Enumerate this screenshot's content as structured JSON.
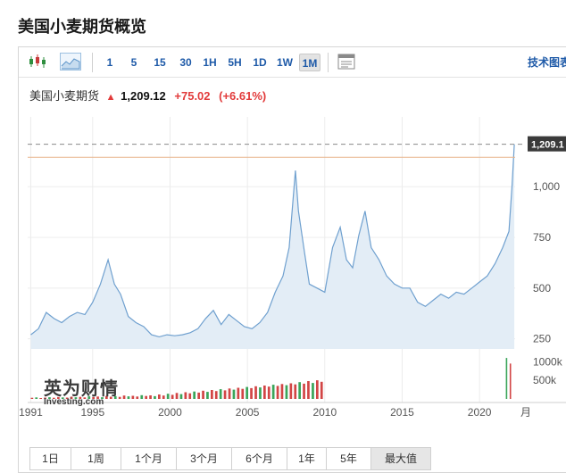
{
  "page": {
    "title": "美国小麦期货概览"
  },
  "toolbar": {
    "candles_icon": "candlestick-chart-icon",
    "area_icon": "area-chart-icon",
    "timeframes": [
      "1",
      "5",
      "15",
      "30",
      "1H",
      "5H",
      "1D",
      "1W",
      "1M"
    ],
    "active_timeframe": "1M",
    "layout_icon": "chart-layout-icon",
    "tech_link": "技术图表"
  },
  "quote": {
    "name": "美国小麦期货",
    "price": "1,209.12",
    "change": "+75.02",
    "change_pct": "(+6.61%)",
    "direction": "up"
  },
  "watermark": {
    "cn": "英为财情",
    "en": "Investing.com"
  },
  "ranges": {
    "items": [
      "1日",
      "1周",
      "1个月",
      "3个月",
      "6个月",
      "1年",
      "5年",
      "最大值"
    ],
    "active": "最大值"
  },
  "colors": {
    "line": "#6fa0cf",
    "fill": "#e3edf6",
    "up": "#e23b3b",
    "vol_up": "#3aa55a",
    "vol_down": "#d24545",
    "ref_line": "#e8b48c"
  },
  "chart_data": {
    "type": "area",
    "ylim": [
      200,
      1300
    ],
    "y_ticks": [
      "250",
      "500",
      "750",
      "1,000"
    ],
    "y_tick_values": [
      250,
      500,
      750,
      1000
    ],
    "x_ticks": [
      "1991",
      "1995",
      "2000",
      "2005",
      "2010",
      "2015",
      "2020"
    ],
    "x_tick_values": [
      1991,
      1995,
      2000,
      2005,
      2010,
      2015,
      2020
    ],
    "x_label_edge": "月",
    "last_price_label": "1,209.1",
    "last_price": 1209.12,
    "volume_ticks": [
      "1000k",
      "500k"
    ],
    "volume_tick_values": [
      1000,
      500
    ],
    "series": [
      {
        "x": [
          1991,
          1991.5,
          1992,
          1992.5,
          1993,
          1993.5,
          1994,
          1994.5,
          1995,
          1995.5,
          1996,
          1996.4,
          1996.8,
          1997.3,
          1997.8,
          1998.3,
          1998.8,
          1999.3,
          1999.8,
          2000.3,
          2000.8,
          2001.3,
          2001.8,
          2002.3,
          2002.8,
          2003.3,
          2003.8,
          2004.3,
          2004.8,
          2005.3,
          2005.8,
          2006.3,
          2006.8,
          2007.3,
          2007.7,
          2008.1,
          2008.3,
          2008.7,
          2009,
          2009.5,
          2010,
          2010.5,
          2011,
          2011.4,
          2011.8,
          2012.2,
          2012.6,
          2013,
          2013.5,
          2014,
          2014.5,
          2015,
          2015.5,
          2016,
          2016.5,
          2017,
          2017.5,
          2018,
          2018.5,
          2019,
          2019.5,
          2020,
          2020.5,
          2021,
          2021.5,
          2021.9,
          2022.1,
          2022.25
        ],
        "values": [
          270,
          300,
          380,
          350,
          330,
          360,
          380,
          370,
          430,
          520,
          640,
          520,
          470,
          360,
          330,
          310,
          270,
          260,
          270,
          265,
          270,
          280,
          300,
          350,
          390,
          320,
          370,
          340,
          310,
          300,
          330,
          380,
          480,
          560,
          700,
          1080,
          880,
          670,
          520,
          500,
          480,
          700,
          800,
          640,
          600,
          760,
          880,
          700,
          640,
          560,
          520,
          500,
          500,
          430,
          410,
          440,
          470,
          450,
          480,
          470,
          500,
          530,
          560,
          620,
          700,
          780,
          1000,
          1209
        ]
      }
    ],
    "volume": {
      "x_start": 1991,
      "x_end": 2010,
      "values_k": [
        30,
        40,
        25,
        35,
        45,
        30,
        50,
        40,
        35,
        60,
        45,
        55,
        40,
        70,
        50,
        65,
        45,
        80,
        60,
        75,
        55,
        90,
        70,
        85,
        65,
        100,
        80,
        95,
        75,
        120,
        90,
        140,
        110,
        160,
        130,
        180,
        150,
        200,
        170,
        220,
        190,
        240,
        210,
        260,
        230,
        280,
        250,
        300,
        270,
        320,
        290,
        340,
        310,
        360,
        330,
        380,
        350,
        400,
        370,
        420,
        390,
        450,
        410,
        480,
        430,
        500,
        460
      ],
      "recent": {
        "x": [
          2021.7,
          2021.95
        ],
        "values_k": [
          1100,
          950
        ]
      }
    }
  }
}
